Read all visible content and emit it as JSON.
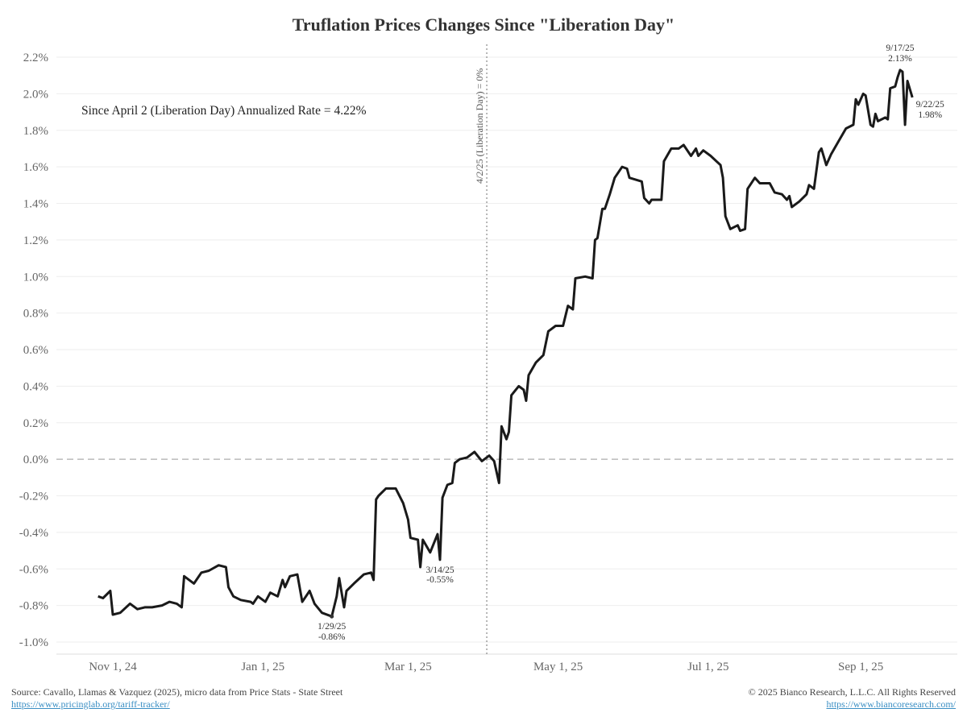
{
  "chart_data": {
    "type": "line",
    "title": "Truflation Prices Changes Since \"Liberation Day\"",
    "xlabel": "",
    "ylabel": "",
    "x_unit": "days since Nov 1, 24",
    "xlim_days": [
      -23,
      343
    ],
    "ylim": [
      -1.0,
      2.2
    ],
    "yticks": [
      "-1.0%",
      "-0.8%",
      "-0.6%",
      "-0.4%",
      "-0.2%",
      "0.0%",
      "0.2%",
      "0.4%",
      "0.6%",
      "0.8%",
      "1.0%",
      "1.2%",
      "1.4%",
      "1.6%",
      "1.8%",
      "2.0%",
      "2.2%"
    ],
    "ytick_values": [
      -1.0,
      -0.8,
      -0.6,
      -0.4,
      -0.2,
      0,
      0.2,
      0.4,
      0.6,
      0.8,
      1.0,
      1.2,
      1.4,
      1.6,
      1.8,
      2.0,
      2.2
    ],
    "xticks": [
      {
        "label": "Nov 1, 24",
        "day": 0
      },
      {
        "label": "Jan 1, 25",
        "day": 61
      },
      {
        "label": "Mar 1, 25",
        "day": 120
      },
      {
        "label": "May 1, 25",
        "day": 181
      },
      {
        "label": "Jul 1, 25",
        "day": 242
      },
      {
        "label": "Sep 1, 25",
        "day": 304
      }
    ],
    "grid": true,
    "series": [
      {
        "name": "Truflation price change",
        "color": "#1a1a1a",
        "points": [
          [
            -6,
            -0.75
          ],
          [
            -4,
            -0.76
          ],
          [
            -1,
            -0.72
          ],
          [
            0,
            -0.85
          ],
          [
            3,
            -0.84
          ],
          [
            7,
            -0.79
          ],
          [
            10,
            -0.82
          ],
          [
            13,
            -0.81
          ],
          [
            16,
            -0.81
          ],
          [
            20,
            -0.8
          ],
          [
            23,
            -0.78
          ],
          [
            26,
            -0.79
          ],
          [
            28,
            -0.81
          ],
          [
            29,
            -0.64
          ],
          [
            33,
            -0.68
          ],
          [
            36,
            -0.62
          ],
          [
            39,
            -0.61
          ],
          [
            43,
            -0.58
          ],
          [
            46,
            -0.59
          ],
          [
            47,
            -0.7
          ],
          [
            49,
            -0.75
          ],
          [
            52,
            -0.77
          ],
          [
            56,
            -0.78
          ],
          [
            57,
            -0.79
          ],
          [
            59,
            -0.75
          ],
          [
            62,
            -0.78
          ],
          [
            64,
            -0.73
          ],
          [
            67,
            -0.75
          ],
          [
            69,
            -0.66
          ],
          [
            70,
            -0.7
          ],
          [
            72,
            -0.64
          ],
          [
            75,
            -0.63
          ],
          [
            77,
            -0.78
          ],
          [
            80,
            -0.72
          ],
          [
            82,
            -0.79
          ],
          [
            85,
            -0.84
          ],
          [
            89,
            -0.86
          ],
          [
            91,
            -0.75
          ],
          [
            92,
            -0.65
          ],
          [
            94,
            -0.81
          ],
          [
            95,
            -0.72
          ],
          [
            98,
            -0.68
          ],
          [
            102,
            -0.63
          ],
          [
            105,
            -0.62
          ],
          [
            106,
            -0.66
          ],
          [
            107,
            -0.22
          ],
          [
            108,
            -0.2
          ],
          [
            111,
            -0.16
          ],
          [
            115,
            -0.16
          ],
          [
            118,
            -0.24
          ],
          [
            120,
            -0.33
          ],
          [
            121,
            -0.43
          ],
          [
            124,
            -0.44
          ],
          [
            125,
            -0.59
          ],
          [
            126,
            -0.44
          ],
          [
            129,
            -0.51
          ],
          [
            132,
            -0.41
          ],
          [
            133,
            -0.55
          ],
          [
            134,
            -0.21
          ],
          [
            136,
            -0.14
          ],
          [
            138,
            -0.13
          ],
          [
            139,
            -0.02
          ],
          [
            141,
            0.0
          ],
          [
            144,
            0.01
          ],
          [
            147,
            0.04
          ],
          [
            150,
            -0.01
          ],
          [
            153,
            0.02
          ],
          [
            155,
            -0.01
          ],
          [
            157,
            -0.13
          ],
          [
            158,
            0.18
          ],
          [
            160,
            0.11
          ],
          [
            161,
            0.15
          ],
          [
            162,
            0.35
          ],
          [
            165,
            0.4
          ],
          [
            167,
            0.38
          ],
          [
            168,
            0.32
          ],
          [
            169,
            0.46
          ],
          [
            172,
            0.53
          ],
          [
            175,
            0.57
          ],
          [
            177,
            0.7
          ],
          [
            180,
            0.73
          ],
          [
            183,
            0.73
          ],
          [
            185,
            0.84
          ],
          [
            187,
            0.82
          ],
          [
            188,
            0.99
          ],
          [
            192,
            1.0
          ],
          [
            195,
            0.99
          ],
          [
            196,
            1.2
          ],
          [
            197,
            1.21
          ],
          [
            199,
            1.37
          ],
          [
            200,
            1.37
          ],
          [
            202,
            1.45
          ],
          [
            204,
            1.54
          ],
          [
            207,
            1.6
          ],
          [
            209,
            1.59
          ],
          [
            210,
            1.54
          ],
          [
            215,
            1.52
          ],
          [
            216,
            1.43
          ],
          [
            218,
            1.4
          ],
          [
            219,
            1.42
          ],
          [
            223,
            1.42
          ],
          [
            224,
            1.63
          ],
          [
            227,
            1.7
          ],
          [
            230,
            1.7
          ],
          [
            232,
            1.72
          ],
          [
            235,
            1.66
          ],
          [
            237,
            1.7
          ],
          [
            238,
            1.66
          ],
          [
            240,
            1.69
          ],
          [
            243,
            1.66
          ],
          [
            247,
            1.61
          ],
          [
            248,
            1.54
          ],
          [
            249,
            1.33
          ],
          [
            251,
            1.26
          ],
          [
            254,
            1.28
          ],
          [
            255,
            1.25
          ],
          [
            257,
            1.26
          ],
          [
            258,
            1.48
          ],
          [
            261,
            1.54
          ],
          [
            263,
            1.51
          ],
          [
            267,
            1.51
          ],
          [
            269,
            1.46
          ],
          [
            272,
            1.45
          ],
          [
            274,
            1.42
          ],
          [
            275,
            1.44
          ],
          [
            276,
            1.38
          ],
          [
            279,
            1.41
          ],
          [
            282,
            1.45
          ],
          [
            283,
            1.5
          ],
          [
            285,
            1.48
          ],
          [
            287,
            1.68
          ],
          [
            288,
            1.7
          ],
          [
            290,
            1.61
          ],
          [
            292,
            1.67
          ],
          [
            295,
            1.74
          ],
          [
            298,
            1.81
          ],
          [
            301,
            1.83
          ],
          [
            302,
            1.97
          ],
          [
            303,
            1.94
          ],
          [
            305,
            2.0
          ],
          [
            306,
            1.99
          ],
          [
            308,
            1.83
          ],
          [
            309,
            1.82
          ],
          [
            310,
            1.89
          ],
          [
            311,
            1.85
          ],
          [
            314,
            1.87
          ],
          [
            315,
            1.86
          ],
          [
            316,
            2.03
          ],
          [
            318,
            2.04
          ],
          [
            319,
            2.09
          ],
          [
            320,
            2.13
          ],
          [
            321,
            2.12
          ],
          [
            322,
            1.83
          ],
          [
            323,
            2.07
          ],
          [
            325,
            1.98
          ]
        ]
      }
    ],
    "reference_lines": {
      "zero_line": 0,
      "vertical": {
        "day": 152,
        "label": "4/2/25 (Liberation Day) = 0%"
      }
    },
    "annotations": [
      {
        "day": 89,
        "value": -0.86,
        "date": "1/29/25",
        "text": "-0.86%"
      },
      {
        "day": 133,
        "value": -0.55,
        "date": "3/14/25",
        "text": "-0.55%"
      },
      {
        "day": 320,
        "value": 2.13,
        "date": "9/17/25",
        "text": "2.13%"
      },
      {
        "day": 325,
        "value": 1.98,
        "date": "9/22/25",
        "text": "1.98%"
      }
    ],
    "note": "Since April 2 (Liberation Day) Annualized Rate = 4.22%"
  },
  "footer": {
    "source": "Source: Cavallo, Llamas & Vazquez (2025), micro data from Price Stats - State Street",
    "source_link": "https://www.pricinglab.org/tariff-tracker/",
    "copyright": "© 2025 Bianco Research, L.L.C. All Rights Reserved",
    "copyright_link": "https://www.biancoresearch.com/"
  }
}
